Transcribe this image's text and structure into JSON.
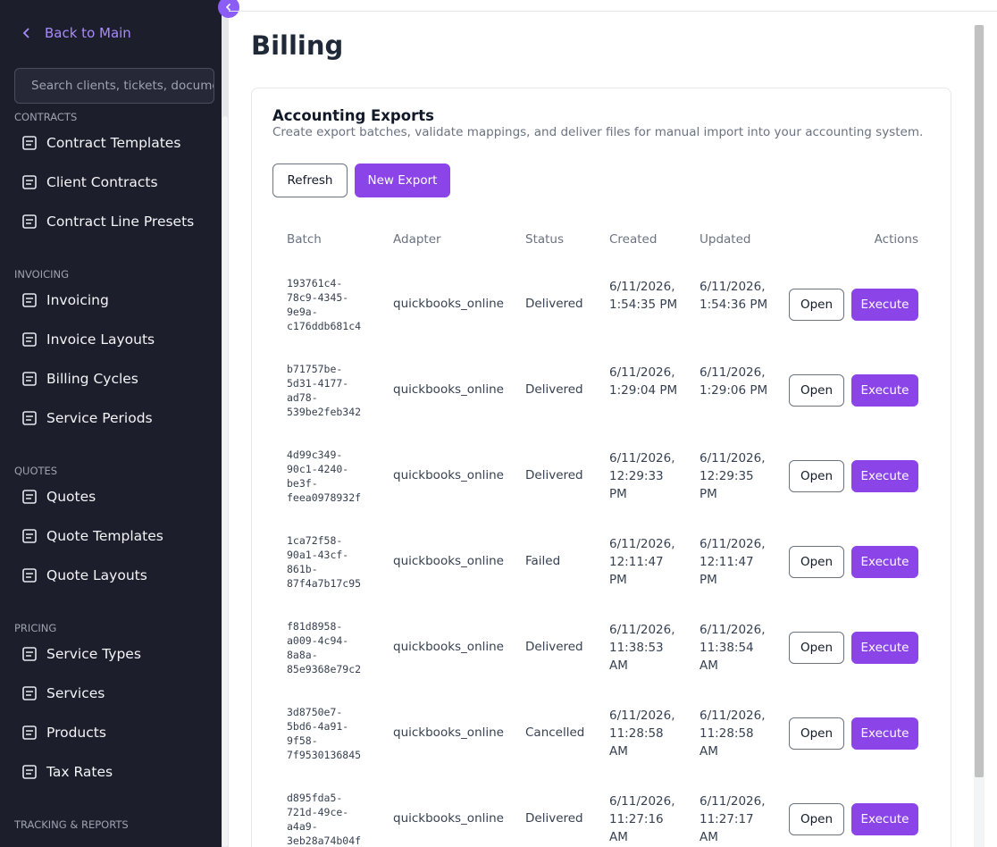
{
  "sidebar": {
    "back": "Back to Main",
    "search_placeholder": "Search clients, tickets, documents",
    "sections": [
      {
        "title": "CONTRACTS",
        "items": [
          "Contract Templates",
          "Client Contracts",
          "Contract Line Presets"
        ]
      },
      {
        "title": "INVOICING",
        "items": [
          "Invoicing",
          "Invoice Layouts",
          "Billing Cycles",
          "Service Periods"
        ]
      },
      {
        "title": "QUOTES",
        "items": [
          "Quotes",
          "Quote Templates",
          "Quote Layouts"
        ]
      },
      {
        "title": "PRICING",
        "items": [
          "Service Types",
          "Services",
          "Products",
          "Tax Rates"
        ]
      },
      {
        "title": "TRACKING & REPORTS",
        "items": []
      }
    ]
  },
  "main": {
    "title": "Billing",
    "card": {
      "title": "Accounting Exports",
      "description": "Create export batches, validate mappings, and deliver files for manual import into your accounting system.",
      "buttons": [
        "Refresh",
        "New Export"
      ],
      "table": {
        "headers": [
          "Batch",
          "Adapter",
          "Status",
          "Created",
          "Updated",
          "Actions"
        ],
        "rows": [
          [
            "193761c4-78c9-4345-9e9a-c176ddb681c4",
            "quickbooks_online",
            "Delivered",
            "6/11/2026, 1:54:35 PM",
            "6/11/2026, 1:54:36 PM",
            "Open",
            "Execute"
          ],
          [
            "b71757be-5d31-4177-ad78-539be2feb342",
            "quickbooks_online",
            "Delivered",
            "6/11/2026, 1:29:04 PM",
            "6/11/2026, 1:29:06 PM",
            "Open",
            "Execute"
          ],
          [
            "4d99c349-90c1-4240-be3f-feea0978932f",
            "quickbooks_online",
            "Delivered",
            "6/11/2026, 12:29:33 PM",
            "6/11/2026, 12:29:35 PM",
            "Open",
            "Execute"
          ],
          [
            "1ca72f58-90a1-43cf-861b-87f4a7b17c95",
            "quickbooks_online",
            "Failed",
            "6/11/2026, 12:11:47 PM",
            "6/11/2026, 12:11:47 PM",
            "Open",
            "Execute"
          ],
          [
            "f81d8958-a009-4c94-8a8a-85e9368e79c2",
            "quickbooks_online",
            "Delivered",
            "6/11/2026, 11:38:53 AM",
            "6/11/2026, 11:38:54 AM",
            "Open",
            "Execute"
          ],
          [
            "3d8750e7-5bd6-4a91-9f58-7f9530136845",
            "quickbooks_online",
            "Cancelled",
            "6/11/2026, 11:28:58 AM",
            "6/11/2026, 11:28:58 AM",
            "Open",
            "Execute"
          ],
          [
            "d895fda5-721d-49ce-a4a9-3eb28a74b04f",
            "quickbooks_online",
            "Delivered",
            "6/11/2026, 11:27:16 AM",
            "6/11/2026, 11:27:17 AM",
            "Open",
            "Execute"
          ]
        ]
      }
    }
  }
}
